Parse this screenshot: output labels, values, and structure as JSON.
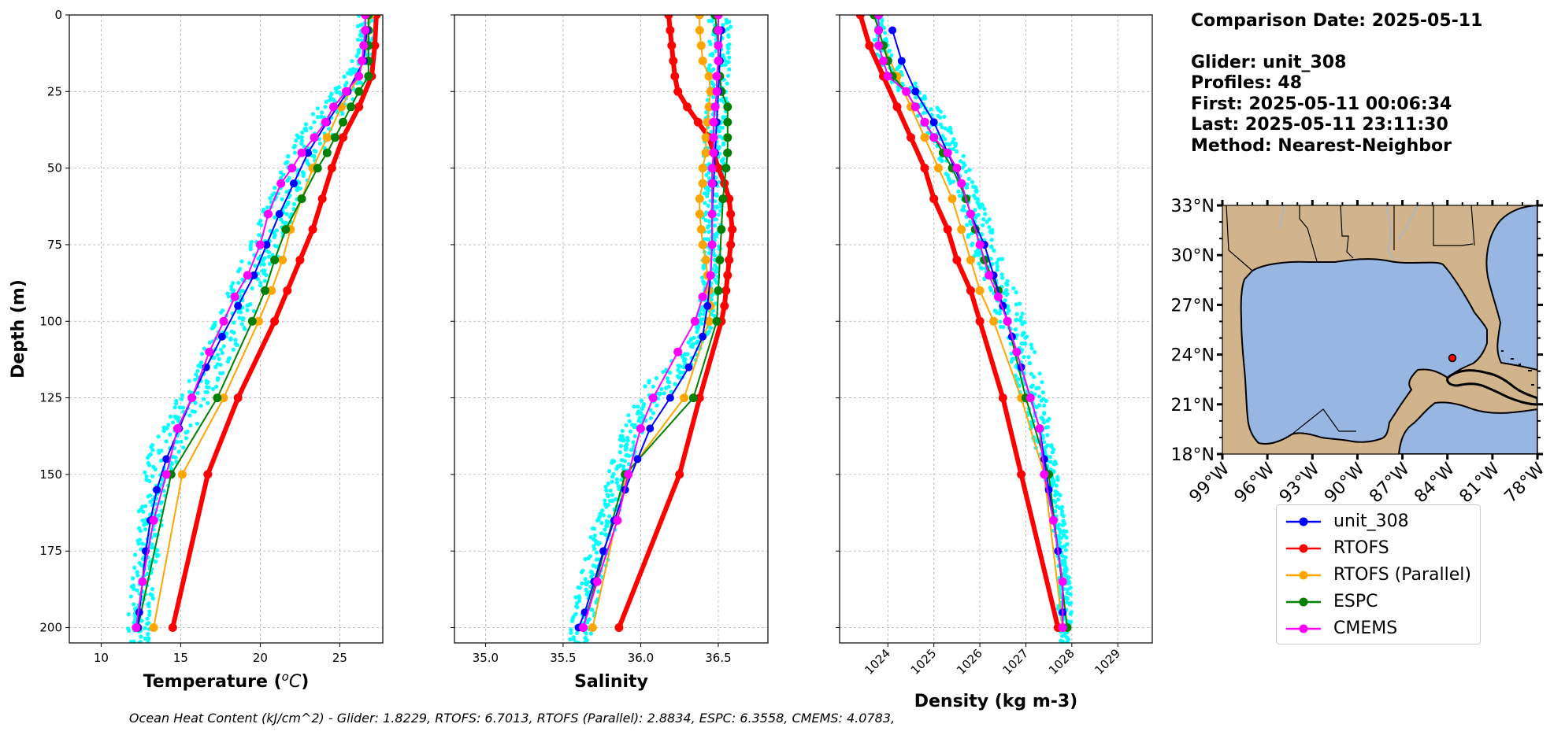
{
  "info": {
    "comparison_date": "Comparison Date: 2025-05-11",
    "glider": "Glider: unit_308",
    "profiles": "Profiles: 48",
    "first": "First: 2025-05-11 00:06:34",
    "last": "Last: 2025-05-11 23:11:30",
    "method": "Method: Nearest-Neighbor"
  },
  "footer": "Ocean Heat Content (kJ/cm^2) - Glider: 1.8229,  RTOFS: 6.7013,  RTOFS (Parallel): 2.8834,  ESPC: 6.3558,  CMEMS: 4.0783,",
  "colors": {
    "unit_308": "#0000ff",
    "RTOFS": "#ff0000",
    "RTOFS (Parallel)": "#ffa500",
    "ESPC": "#008000",
    "CMEMS": "#ff00ff",
    "scatter": "#00ffff",
    "land": "#d2b48c",
    "ocean": "#97b6e1",
    "marker": "#ff0000"
  },
  "legend": [
    "unit_308",
    "RTOFS",
    "RTOFS (Parallel)",
    "ESPC",
    "CMEMS"
  ],
  "chart_data": [
    {
      "type": "line",
      "xlabel": "Temperature ($^oC$)",
      "ylabel": "Depth (m)",
      "xlim": [
        8,
        27.7
      ],
      "ylim": [
        205,
        0
      ],
      "xticks": [
        10,
        15,
        20,
        25
      ],
      "yticks": [
        0,
        25,
        50,
        75,
        100,
        125,
        150,
        175,
        200
      ],
      "grid": true,
      "scatter_band": {
        "depth": [
          0,
          10,
          20,
          25,
          30,
          40,
          50,
          60,
          70,
          80,
          90,
          100,
          110,
          120,
          130,
          140,
          150,
          160,
          170,
          180,
          190,
          200,
          205
        ],
        "min": [
          26.2,
          26.0,
          25.4,
          24.5,
          23.4,
          22.3,
          21.3,
          20.5,
          19.7,
          18.8,
          18.0,
          17.1,
          16.2,
          15.4,
          14.3,
          13.1,
          12.6,
          12.4,
          12.2,
          12.0,
          11.8,
          11.6,
          11.6
        ],
        "max": [
          27.2,
          27.1,
          26.8,
          26.4,
          25.4,
          24.4,
          23.3,
          22.6,
          21.8,
          21.0,
          20.1,
          19.3,
          18.3,
          17.5,
          16.4,
          15.3,
          14.4,
          14.0,
          13.8,
          13.5,
          13.3,
          13.1,
          13.0
        ]
      },
      "series": [
        {
          "name": "unit_308",
          "depth": [
            5,
            15,
            25,
            35,
            45,
            55,
            65,
            75,
            85,
            95,
            105,
            115,
            125,
            135,
            145,
            155,
            165,
            175,
            185,
            195,
            200
          ],
          "values": [
            26.7,
            26.5,
            25.5,
            24.2,
            23.0,
            22.1,
            21.2,
            20.4,
            19.6,
            18.6,
            17.6,
            16.6,
            15.7,
            14.9,
            14.1,
            13.5,
            13.1,
            12.8,
            12.6,
            12.4,
            12.3
          ]
        },
        {
          "name": "RTOFS",
          "depth": [
            0,
            10,
            20,
            30,
            40,
            50,
            60,
            70,
            80,
            90,
            100,
            125,
            150,
            200
          ],
          "values": [
            27.3,
            27.2,
            27.0,
            26.2,
            25.2,
            24.5,
            23.9,
            23.3,
            22.5,
            21.7,
            20.9,
            18.6,
            16.7,
            14.5
          ]
        },
        {
          "name": "RTOFS (Parallel)",
          "depth": [
            0,
            10,
            20,
            30,
            40,
            50,
            60,
            70,
            80,
            90,
            100,
            125,
            150,
            200
          ],
          "values": [
            26.9,
            26.7,
            26.2,
            25.1,
            24.2,
            23.3,
            22.6,
            21.9,
            21.4,
            20.7,
            19.9,
            17.7,
            15.1,
            13.3
          ]
        },
        {
          "name": "ESPC",
          "depth": [
            0,
            5,
            10,
            15,
            20,
            25,
            30,
            35,
            40,
            45,
            50,
            60,
            70,
            80,
            90,
            100,
            125,
            150,
            200
          ],
          "values": [
            26.8,
            26.8,
            26.8,
            26.8,
            26.8,
            26.2,
            25.7,
            25.2,
            24.7,
            24.2,
            23.6,
            22.6,
            21.6,
            20.9,
            20.3,
            19.5,
            17.3,
            14.4,
            12.3
          ]
        },
        {
          "name": "CMEMS",
          "depth": [
            0,
            5,
            10,
            15,
            20,
            25,
            30,
            35,
            40,
            45,
            50,
            55,
            65,
            75,
            85,
            92,
            100,
            110,
            125,
            135,
            150,
            165,
            185,
            200
          ],
          "values": [
            26.6,
            26.6,
            26.5,
            26.4,
            26.2,
            25.4,
            24.6,
            24.1,
            23.4,
            22.6,
            22.0,
            21.3,
            20.5,
            20.0,
            19.2,
            18.4,
            17.7,
            16.8,
            15.7,
            14.8,
            14.1,
            13.3,
            12.6,
            12.2
          ]
        }
      ]
    },
    {
      "type": "line",
      "xlabel": "Salinity",
      "xlim": [
        34.8,
        36.82
      ],
      "ylim": [
        205,
        0
      ],
      "xticks": [
        35.0,
        35.5,
        36.0,
        36.5
      ],
      "yticks": [
        0,
        25,
        50,
        75,
        100,
        125,
        150,
        175,
        200
      ],
      "grid": true,
      "scatter_band": {
        "depth": [
          0,
          10,
          20,
          30,
          40,
          50,
          60,
          70,
          80,
          90,
          100,
          110,
          115,
          120,
          125,
          130,
          140,
          150,
          160,
          170,
          180,
          190,
          200,
          205
        ],
        "min": [
          36.44,
          36.44,
          36.43,
          36.42,
          36.41,
          36.4,
          36.4,
          36.4,
          36.4,
          36.39,
          36.35,
          36.25,
          36.16,
          36.05,
          35.98,
          35.93,
          35.84,
          35.78,
          35.73,
          35.68,
          35.63,
          35.58,
          35.55,
          35.54
        ],
        "max": [
          36.58,
          36.58,
          36.57,
          36.56,
          36.55,
          36.54,
          36.53,
          36.52,
          36.51,
          36.5,
          36.47,
          36.4,
          36.33,
          36.26,
          36.17,
          36.08,
          35.98,
          35.93,
          35.88,
          35.83,
          35.78,
          35.73,
          35.69,
          35.66
        ]
      },
      "series": [
        {
          "name": "unit_308",
          "depth": [
            5,
            15,
            25,
            35,
            45,
            55,
            65,
            75,
            85,
            95,
            105,
            115,
            125,
            135,
            145,
            155,
            165,
            175,
            185,
            195,
            200
          ],
          "values": [
            36.52,
            36.51,
            36.5,
            36.49,
            36.48,
            36.47,
            36.46,
            36.46,
            36.45,
            36.43,
            36.4,
            36.31,
            36.19,
            36.06,
            35.98,
            35.9,
            35.83,
            35.76,
            35.7,
            35.64,
            35.6
          ]
        },
        {
          "name": "RTOFS",
          "depth": [
            0,
            5,
            10,
            15,
            20,
            25,
            30,
            35,
            40,
            45,
            50,
            55,
            60,
            65,
            70,
            75,
            80,
            85,
            90,
            95,
            100,
            125,
            150,
            200
          ],
          "values": [
            36.18,
            36.19,
            36.2,
            36.21,
            36.22,
            36.24,
            36.3,
            36.37,
            36.44,
            36.47,
            36.5,
            36.54,
            36.57,
            36.58,
            36.59,
            36.58,
            36.57,
            36.56,
            36.55,
            36.54,
            36.52,
            36.38,
            36.25,
            35.86
          ]
        },
        {
          "name": "RTOFS (Parallel)",
          "depth": [
            0,
            5,
            10,
            15,
            20,
            25,
            30,
            35,
            40,
            45,
            50,
            55,
            60,
            65,
            70,
            75,
            80,
            85,
            90,
            95,
            100,
            125,
            150,
            200
          ],
          "values": [
            36.38,
            36.38,
            36.39,
            36.4,
            36.44,
            36.45,
            36.44,
            36.43,
            36.42,
            36.42,
            36.4,
            36.4,
            36.38,
            36.38,
            36.39,
            36.4,
            36.42,
            36.43,
            36.44,
            36.45,
            36.44,
            36.28,
            35.91,
            35.69
          ]
        },
        {
          "name": "ESPC",
          "depth": [
            0,
            5,
            10,
            15,
            20,
            25,
            30,
            35,
            40,
            45,
            50,
            60,
            70,
            80,
            90,
            100,
            125,
            150,
            200
          ],
          "values": [
            36.48,
            36.49,
            36.5,
            36.5,
            36.51,
            36.52,
            36.56,
            36.56,
            36.56,
            36.56,
            36.55,
            36.53,
            36.52,
            36.51,
            36.5,
            36.49,
            36.34,
            35.9,
            35.63
          ]
        },
        {
          "name": "CMEMS",
          "depth": [
            0,
            5,
            10,
            15,
            20,
            25,
            30,
            35,
            40,
            45,
            50,
            55,
            65,
            75,
            85,
            92,
            100,
            110,
            125,
            135,
            150,
            165,
            185,
            200
          ],
          "values": [
            36.5,
            36.5,
            36.5,
            36.5,
            36.49,
            36.49,
            36.48,
            36.47,
            36.47,
            36.47,
            36.46,
            36.46,
            36.46,
            36.46,
            36.45,
            36.4,
            36.35,
            36.24,
            36.08,
            36.0,
            35.92,
            35.85,
            35.72,
            35.63
          ]
        }
      ]
    },
    {
      "type": "line",
      "xlabel": "Density (kg m-3)",
      "xlim": [
        1022.95,
        1029.75
      ],
      "ylim": [
        205,
        0
      ],
      "xticks": [
        1024,
        1025,
        1026,
        1027,
        1028,
        1029
      ],
      "yticks": [
        0,
        25,
        50,
        75,
        100,
        125,
        150,
        175,
        200
      ],
      "grid": true,
      "scatter_band": {
        "depth": [
          0,
          10,
          20,
          25,
          30,
          40,
          50,
          60,
          70,
          80,
          90,
          100,
          110,
          120,
          130,
          140,
          150,
          160,
          170,
          180,
          190,
          200,
          205
        ],
        "min": [
          1023.6,
          1023.7,
          1023.9,
          1024.1,
          1024.5,
          1024.9,
          1025.2,
          1025.5,
          1025.7,
          1025.9,
          1026.2,
          1026.4,
          1026.6,
          1026.8,
          1027.0,
          1027.2,
          1027.4,
          1027.5,
          1027.6,
          1027.7,
          1027.7,
          1027.7,
          1027.7
        ],
        "max": [
          1023.9,
          1024.0,
          1024.5,
          1024.8,
          1025.1,
          1025.5,
          1025.8,
          1026.0,
          1026.3,
          1026.5,
          1026.8,
          1027.0,
          1027.2,
          1027.4,
          1027.5,
          1027.6,
          1027.7,
          1027.8,
          1027.9,
          1027.9,
          1028.0,
          1028.0,
          1028.0
        ]
      },
      "series": [
        {
          "name": "unit_308",
          "depth": [
            5,
            15,
            25,
            35,
            45,
            55,
            65,
            75,
            85,
            95,
            105,
            115,
            125,
            135,
            145,
            155,
            165,
            175,
            185,
            195,
            200
          ],
          "values": [
            1024.1,
            1024.3,
            1024.6,
            1025.0,
            1025.3,
            1025.6,
            1025.8,
            1026.1,
            1026.3,
            1026.5,
            1026.7,
            1026.9,
            1027.1,
            1027.3,
            1027.4,
            1027.5,
            1027.6,
            1027.7,
            1027.8,
            1027.8,
            1027.8
          ]
        },
        {
          "name": "RTOFS",
          "depth": [
            0,
            10,
            20,
            30,
            40,
            50,
            60,
            70,
            80,
            90,
            100,
            125,
            150,
            200
          ],
          "values": [
            1023.4,
            1023.6,
            1023.9,
            1024.2,
            1024.5,
            1024.8,
            1025.0,
            1025.3,
            1025.5,
            1025.8,
            1026.0,
            1026.5,
            1026.9,
            1027.7
          ]
        },
        {
          "name": "RTOFS (Parallel)",
          "depth": [
            0,
            10,
            20,
            30,
            40,
            50,
            60,
            70,
            80,
            90,
            100,
            125,
            150,
            200
          ],
          "values": [
            1023.7,
            1023.9,
            1024.2,
            1024.5,
            1024.8,
            1025.1,
            1025.4,
            1025.6,
            1025.8,
            1026.0,
            1026.3,
            1026.9,
            1027.4,
            1027.8
          ]
        },
        {
          "name": "ESPC",
          "depth": [
            0,
            5,
            10,
            15,
            20,
            25,
            30,
            35,
            40,
            45,
            50,
            60,
            70,
            80,
            90,
            100,
            125,
            150,
            200
          ],
          "values": [
            1023.7,
            1023.8,
            1023.9,
            1024.0,
            1024.1,
            1024.4,
            1024.6,
            1024.8,
            1025.0,
            1025.2,
            1025.4,
            1025.7,
            1025.9,
            1026.1,
            1026.4,
            1026.6,
            1027.0,
            1027.5,
            1027.9
          ]
        },
        {
          "name": "CMEMS",
          "depth": [
            0,
            5,
            10,
            15,
            20,
            25,
            30,
            35,
            40,
            45,
            50,
            55,
            65,
            75,
            85,
            92,
            100,
            110,
            125,
            135,
            150,
            165,
            185,
            200
          ],
          "values": [
            1023.8,
            1023.8,
            1023.8,
            1023.9,
            1024.0,
            1024.4,
            1024.6,
            1024.8,
            1025.0,
            1025.3,
            1025.5,
            1025.6,
            1025.8,
            1026.0,
            1026.2,
            1026.4,
            1026.6,
            1026.8,
            1027.1,
            1027.3,
            1027.4,
            1027.6,
            1027.8,
            1027.8
          ]
        }
      ]
    }
  ],
  "map": {
    "lat_labels": [
      "33°N",
      "30°N",
      "27°N",
      "24°N",
      "21°N",
      "18°N"
    ],
    "lon_labels": [
      "99°W",
      "96°W",
      "93°W",
      "90°W",
      "87°W",
      "84°W",
      "81°W",
      "78°W"
    ],
    "lat_range": [
      18,
      33
    ],
    "lon_range": [
      -99,
      -78
    ],
    "marker": {
      "lon": -83.5,
      "lat": 24.0
    }
  }
}
